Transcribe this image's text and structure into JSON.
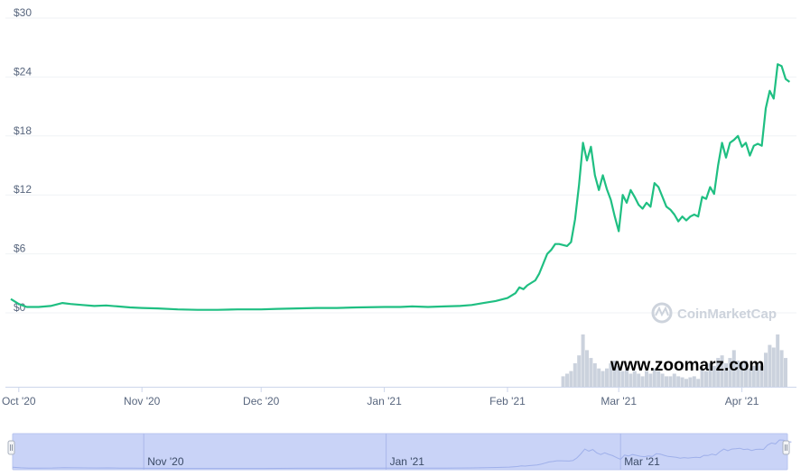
{
  "colors": {
    "line": "#1fbf82",
    "volume": "#cbd2dd",
    "grid": "#eff2f5",
    "navigator_fill": "#c9d3f7",
    "navigator_line": "#9fb0ea"
  },
  "chart_data": {
    "type": "line",
    "title": "",
    "xlabel": "",
    "ylabel": "",
    "ylim": [
      0,
      30
    ],
    "y_ticks": [
      {
        "value": 0,
        "label": "$0"
      },
      {
        "value": 6,
        "label": "$6"
      },
      {
        "value": 12,
        "label": "$12"
      },
      {
        "value": 18,
        "label": "$18"
      },
      {
        "value": 24,
        "label": "$24"
      },
      {
        "value": 30,
        "label": "$30"
      }
    ],
    "x_range": [
      "2020-09-29",
      "2021-04-12"
    ],
    "x_ticks": [
      {
        "date": "2020-10-01",
        "label": "Oct '20"
      },
      {
        "date": "2020-11-01",
        "label": "Nov '20"
      },
      {
        "date": "2020-12-01",
        "label": "Dec '20"
      },
      {
        "date": "2021-01-01",
        "label": "Jan '21"
      },
      {
        "date": "2021-02-01",
        "label": "Feb '21"
      },
      {
        "date": "2021-03-01",
        "label": "Mar '21"
      },
      {
        "date": "2021-04-01",
        "label": "Apr '21"
      }
    ],
    "grid": true,
    "series": [
      {
        "points": [
          [
            "2020-09-29",
            1.4
          ],
          [
            "2020-10-01",
            0.9
          ],
          [
            "2020-10-03",
            0.6
          ],
          [
            "2020-10-06",
            0.6
          ],
          [
            "2020-10-09",
            0.7
          ],
          [
            "2020-10-12",
            1.0
          ],
          [
            "2020-10-14",
            0.9
          ],
          [
            "2020-10-17",
            0.8
          ],
          [
            "2020-10-20",
            0.7
          ],
          [
            "2020-10-23",
            0.75
          ],
          [
            "2020-10-26",
            0.65
          ],
          [
            "2020-10-29",
            0.55
          ],
          [
            "2020-11-01",
            0.5
          ],
          [
            "2020-11-05",
            0.45
          ],
          [
            "2020-11-10",
            0.35
          ],
          [
            "2020-11-15",
            0.3
          ],
          [
            "2020-11-20",
            0.3
          ],
          [
            "2020-11-25",
            0.35
          ],
          [
            "2020-12-01",
            0.35
          ],
          [
            "2020-12-05",
            0.4
          ],
          [
            "2020-12-10",
            0.45
          ],
          [
            "2020-12-15",
            0.5
          ],
          [
            "2020-12-20",
            0.5
          ],
          [
            "2020-12-25",
            0.55
          ],
          [
            "2021-01-01",
            0.6
          ],
          [
            "2021-01-05",
            0.6
          ],
          [
            "2021-01-08",
            0.65
          ],
          [
            "2021-01-12",
            0.6
          ],
          [
            "2021-01-16",
            0.65
          ],
          [
            "2021-01-20",
            0.7
          ],
          [
            "2021-01-23",
            0.8
          ],
          [
            "2021-01-26",
            1.0
          ],
          [
            "2021-01-29",
            1.2
          ],
          [
            "2021-02-01",
            1.5
          ],
          [
            "2021-02-03",
            2.0
          ],
          [
            "2021-02-04",
            2.6
          ],
          [
            "2021-02-05",
            2.4
          ],
          [
            "2021-02-06",
            2.8
          ],
          [
            "2021-02-08",
            3.3
          ],
          [
            "2021-02-09",
            4.0
          ],
          [
            "2021-02-10",
            5.0
          ],
          [
            "2021-02-11",
            6.0
          ],
          [
            "2021-02-12",
            6.4
          ],
          [
            "2021-02-13",
            7.0
          ],
          [
            "2021-02-14",
            7.0
          ],
          [
            "2021-02-16",
            6.8
          ],
          [
            "2021-02-17",
            7.2
          ],
          [
            "2021-02-18",
            9.5
          ],
          [
            "2021-02-19",
            13.0
          ],
          [
            "2021-02-20",
            17.3
          ],
          [
            "2021-02-21",
            15.5
          ],
          [
            "2021-02-22",
            16.9
          ],
          [
            "2021-02-23",
            14.0
          ],
          [
            "2021-02-24",
            12.5
          ],
          [
            "2021-02-25",
            14.0
          ],
          [
            "2021-02-26",
            12.6
          ],
          [
            "2021-02-27",
            11.5
          ],
          [
            "2021-02-28",
            9.8
          ],
          [
            "2021-03-01",
            8.3
          ],
          [
            "2021-03-02",
            12.0
          ],
          [
            "2021-03-03",
            11.2
          ],
          [
            "2021-03-04",
            12.5
          ],
          [
            "2021-03-05",
            11.8
          ],
          [
            "2021-03-06",
            11.0
          ],
          [
            "2021-03-07",
            10.6
          ],
          [
            "2021-03-08",
            11.2
          ],
          [
            "2021-03-09",
            10.8
          ],
          [
            "2021-03-10",
            13.2
          ],
          [
            "2021-03-11",
            12.8
          ],
          [
            "2021-03-12",
            11.8
          ],
          [
            "2021-03-13",
            10.8
          ],
          [
            "2021-03-14",
            10.5
          ],
          [
            "2021-03-15",
            10.0
          ],
          [
            "2021-03-16",
            9.3
          ],
          [
            "2021-03-17",
            9.8
          ],
          [
            "2021-03-18",
            9.4
          ],
          [
            "2021-03-19",
            9.8
          ],
          [
            "2021-03-20",
            10.0
          ],
          [
            "2021-03-21",
            9.8
          ],
          [
            "2021-03-22",
            11.8
          ],
          [
            "2021-03-23",
            11.6
          ],
          [
            "2021-03-24",
            12.8
          ],
          [
            "2021-03-25",
            12.1
          ],
          [
            "2021-03-26",
            15.0
          ],
          [
            "2021-03-27",
            17.3
          ],
          [
            "2021-03-28",
            15.8
          ],
          [
            "2021-03-29",
            17.3
          ],
          [
            "2021-03-30",
            17.6
          ],
          [
            "2021-03-31",
            18.0
          ],
          [
            "2021-04-01",
            16.9
          ],
          [
            "2021-04-02",
            17.3
          ],
          [
            "2021-04-03",
            16.0
          ],
          [
            "2021-04-04",
            17.0
          ],
          [
            "2021-04-05",
            17.2
          ],
          [
            "2021-04-06",
            17.0
          ],
          [
            "2021-04-07",
            20.8
          ],
          [
            "2021-04-08",
            22.6
          ],
          [
            "2021-04-09",
            21.8
          ],
          [
            "2021-04-10",
            25.3
          ],
          [
            "2021-04-11",
            25.1
          ],
          [
            "2021-04-12",
            23.8
          ],
          [
            "2021-04-13",
            23.5
          ]
        ]
      }
    ],
    "volume_bars": [
      [
        "2021-02-15",
        0.2
      ],
      [
        "2021-02-16",
        0.25
      ],
      [
        "2021-02-17",
        0.3
      ],
      [
        "2021-02-18",
        0.45
      ],
      [
        "2021-02-19",
        0.6
      ],
      [
        "2021-02-20",
        1.0
      ],
      [
        "2021-02-21",
        0.7
      ],
      [
        "2021-02-22",
        0.55
      ],
      [
        "2021-02-23",
        0.45
      ],
      [
        "2021-02-24",
        0.35
      ],
      [
        "2021-02-25",
        0.3
      ],
      [
        "2021-02-26",
        0.35
      ],
      [
        "2021-02-27",
        0.45
      ],
      [
        "2021-02-28",
        0.5
      ],
      [
        "2021-03-01",
        0.4
      ],
      [
        "2021-03-02",
        0.3
      ],
      [
        "2021-03-03",
        0.35
      ],
      [
        "2021-03-04",
        0.25
      ],
      [
        "2021-03-05",
        0.3
      ],
      [
        "2021-03-06",
        0.25
      ],
      [
        "2021-03-07",
        0.2
      ],
      [
        "2021-03-08",
        0.3
      ],
      [
        "2021-03-09",
        0.25
      ],
      [
        "2021-03-10",
        0.35
      ],
      [
        "2021-03-11",
        0.3
      ],
      [
        "2021-03-12",
        0.25
      ],
      [
        "2021-03-13",
        0.2
      ],
      [
        "2021-03-14",
        0.2
      ],
      [
        "2021-03-15",
        0.25
      ],
      [
        "2021-03-16",
        0.2
      ],
      [
        "2021-03-17",
        0.18
      ],
      [
        "2021-03-18",
        0.15
      ],
      [
        "2021-03-19",
        0.18
      ],
      [
        "2021-03-20",
        0.2
      ],
      [
        "2021-03-21",
        0.15
      ],
      [
        "2021-03-22",
        0.35
      ],
      [
        "2021-03-23",
        0.3
      ],
      [
        "2021-03-24",
        0.45
      ],
      [
        "2021-03-25",
        0.4
      ],
      [
        "2021-03-26",
        0.55
      ],
      [
        "2021-03-27",
        0.6
      ],
      [
        "2021-03-28",
        0.45
      ],
      [
        "2021-03-29",
        0.55
      ],
      [
        "2021-03-30",
        0.7
      ],
      [
        "2021-03-31",
        0.5
      ],
      [
        "2021-04-01",
        0.45
      ],
      [
        "2021-04-02",
        0.5
      ],
      [
        "2021-04-03",
        0.35
      ],
      [
        "2021-04-04",
        0.4
      ],
      [
        "2021-04-05",
        0.45
      ],
      [
        "2021-04-06",
        0.4
      ],
      [
        "2021-04-07",
        0.65
      ],
      [
        "2021-04-08",
        0.8
      ],
      [
        "2021-04-09",
        0.75
      ],
      [
        "2021-04-10",
        1.0
      ],
      [
        "2021-04-11",
        0.7
      ],
      [
        "2021-04-12",
        0.55
      ]
    ],
    "navigator_ticks": [
      {
        "date": "2020-11-01",
        "label": "Nov '20"
      },
      {
        "date": "2021-01-01",
        "label": "Jan '21"
      },
      {
        "date": "2021-03-01",
        "label": "Mar '21"
      }
    ]
  },
  "watermarks": {
    "provider": "CoinMarketCap",
    "site": "www.zoomarz.com"
  }
}
